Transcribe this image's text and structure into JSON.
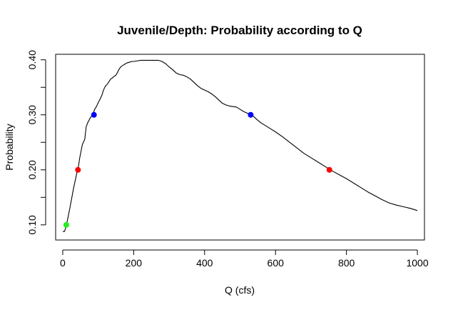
{
  "chart_data": {
    "type": "line",
    "title": "Juvenile/Depth: Probability according to Q",
    "xlabel": "Q (cfs)",
    "ylabel": "Probability",
    "xlim": [
      -20,
      1020
    ],
    "ylim": [
      0.0725,
      0.41
    ],
    "x_ticks": [
      0,
      200,
      400,
      600,
      800,
      1000
    ],
    "x_tick_labels": [
      "0",
      "200",
      "400",
      "600",
      "800",
      "1000"
    ],
    "y_ticks": [
      0.1,
      0.2,
      0.3,
      0.4
    ],
    "y_tick_labels": [
      "0.10",
      "0.20",
      "0.30",
      "0.40"
    ],
    "y_minor_ticks": [
      0.15,
      0.25,
      0.35
    ],
    "grid": false,
    "curve": {
      "x": [
        0,
        5,
        10,
        20,
        30,
        40,
        44,
        48,
        52,
        55,
        58,
        62,
        66,
        70,
        74,
        78,
        82,
        86,
        90,
        95,
        100,
        105,
        110,
        115,
        120,
        125,
        130,
        135,
        140,
        145,
        150,
        155,
        160,
        165,
        170,
        175,
        180,
        185,
        190,
        195,
        200,
        210,
        220,
        230,
        240,
        250,
        260,
        270,
        280,
        290,
        300,
        310,
        320,
        330,
        340,
        350,
        360,
        370,
        380,
        390,
        400,
        410,
        420,
        430,
        440,
        450,
        460,
        470,
        480,
        490,
        500,
        510,
        520,
        530,
        540,
        550,
        560,
        580,
        600,
        620,
        640,
        660,
        680,
        700,
        720,
        740,
        760,
        780,
        800,
        820,
        840,
        860,
        880,
        900,
        920,
        940,
        960,
        980,
        1000
      ],
      "y": [
        0.088,
        0.088,
        0.098,
        0.13,
        0.165,
        0.195,
        0.205,
        0.222,
        0.235,
        0.245,
        0.25,
        0.255,
        0.278,
        0.285,
        0.29,
        0.295,
        0.298,
        0.302,
        0.31,
        0.315,
        0.322,
        0.328,
        0.335,
        0.345,
        0.352,
        0.355,
        0.36,
        0.365,
        0.367,
        0.37,
        0.372,
        0.378,
        0.384,
        0.388,
        0.39,
        0.392,
        0.394,
        0.395,
        0.396,
        0.397,
        0.397,
        0.398,
        0.399,
        0.399,
        0.399,
        0.399,
        0.399,
        0.399,
        0.397,
        0.393,
        0.387,
        0.382,
        0.376,
        0.373,
        0.372,
        0.369,
        0.365,
        0.359,
        0.353,
        0.348,
        0.345,
        0.342,
        0.338,
        0.333,
        0.327,
        0.321,
        0.318,
        0.316,
        0.315,
        0.314,
        0.31,
        0.306,
        0.303,
        0.301,
        0.296,
        0.29,
        0.285,
        0.277,
        0.269,
        0.26,
        0.25,
        0.24,
        0.23,
        0.222,
        0.214,
        0.206,
        0.198,
        0.191,
        0.184,
        0.176,
        0.168,
        0.16,
        0.153,
        0.146,
        0.14,
        0.136,
        0.133,
        0.13,
        0.126
      ]
    },
    "points": [
      {
        "x": 10,
        "y": 0.1,
        "color": "#22ee22"
      },
      {
        "x": 43,
        "y": 0.2,
        "color": "#ff0000"
      },
      {
        "x": 88,
        "y": 0.3,
        "color": "#0000ff"
      },
      {
        "x": 530,
        "y": 0.3,
        "color": "#0000ff"
      },
      {
        "x": 752,
        "y": 0.2,
        "color": "#ff0000"
      }
    ],
    "line_color": "#000000",
    "background": "#ffffff"
  }
}
